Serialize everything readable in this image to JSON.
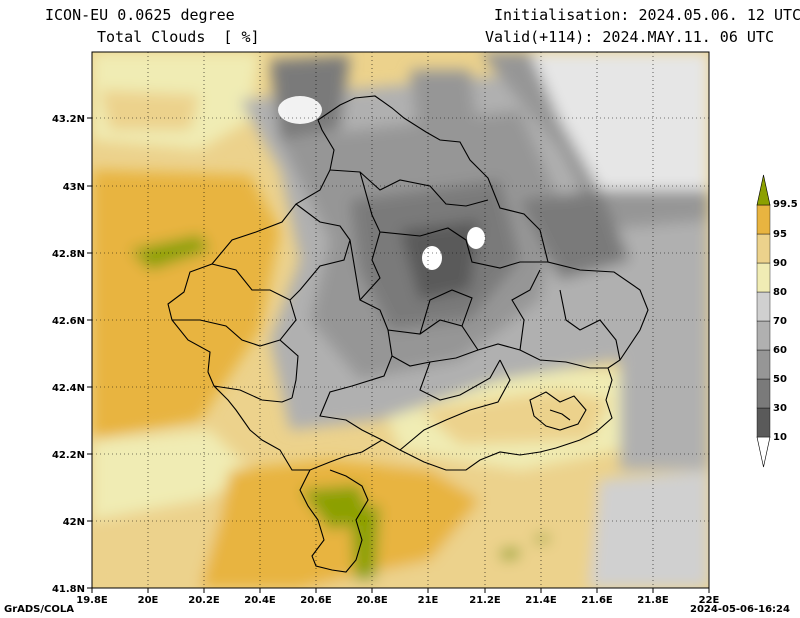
{
  "header": {
    "model": "ICON-EU 0.0625 degree",
    "variable": "Total Clouds  [ %]",
    "init": "Initialisation: 2024.05.06. 12 UTC",
    "valid": "Valid(+114): 2024.MAY.11. 06 UTC"
  },
  "axes": {
    "x_ticks": [
      "19.8E",
      "20E",
      "20.2E",
      "20.4E",
      "20.6E",
      "20.8E",
      "21E",
      "21.2E",
      "21.4E",
      "21.6E",
      "21.8E",
      "22E"
    ],
    "y_ticks": [
      "43.2N",
      "43N",
      "42.8N",
      "42.6N",
      "42.4N",
      "42.2N",
      "42N",
      "41.8N"
    ]
  },
  "colorbar": {
    "levels": [
      "10",
      "30",
      "50",
      "60",
      "70",
      "80",
      "90",
      "95",
      "99.5"
    ],
    "colors": [
      "#5a5a5a",
      "#7a7a7a",
      "#969696",
      "#b0b0b0",
      "#d0d0d0",
      "#f0ecb4",
      "#ecd28c",
      "#e8b440",
      "#8ca000"
    ]
  },
  "footer": {
    "left": "GrADS/COLA",
    "right": "2024-05-06-16:24"
  }
}
